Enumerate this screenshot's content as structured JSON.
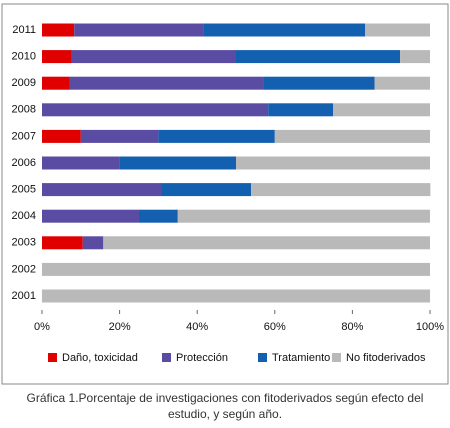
{
  "chart_data": {
    "type": "stacked-barh",
    "caption": "Gráfica 1.Porcentaje de investigaciones con fitoderivados según efecto del estudio, y según año.",
    "categories": [
      "2011",
      "2010",
      "2009",
      "2008",
      "2007",
      "2006",
      "2005",
      "2004",
      "2003",
      "2002",
      "2001"
    ],
    "series": [
      {
        "name": "Daño, toxicidad",
        "color": "#e00000",
        "values": [
          8.3,
          7.7,
          7.1,
          0,
          10,
          0,
          0,
          0,
          10.5,
          0,
          0
        ]
      },
      {
        "name": "Protección",
        "color": "#5a4ca2",
        "values": [
          33.3,
          42.3,
          50,
          58.3,
          20,
          20,
          30.8,
          25,
          5.3,
          0,
          0
        ]
      },
      {
        "name": "Tratamiento",
        "color": "#1460b0",
        "values": [
          41.7,
          42.3,
          28.6,
          16.7,
          30,
          30,
          23.1,
          10,
          0,
          0,
          0
        ]
      },
      {
        "name": "No fitoderivados",
        "color": "#b9b9b9",
        "values": [
          16.7,
          7.7,
          14.3,
          25,
          40,
          50,
          46.2,
          65,
          84.2,
          100,
          100
        ]
      }
    ],
    "xlim": [
      0,
      100
    ],
    "xticks": [
      {
        "value": 0,
        "label": "0%"
      },
      {
        "value": 20,
        "label": "20%"
      },
      {
        "value": 40,
        "label": "40%"
      },
      {
        "value": 60,
        "label": "60%"
      },
      {
        "value": 80,
        "label": "80%"
      },
      {
        "value": 100,
        "label": "100%"
      }
    ]
  }
}
